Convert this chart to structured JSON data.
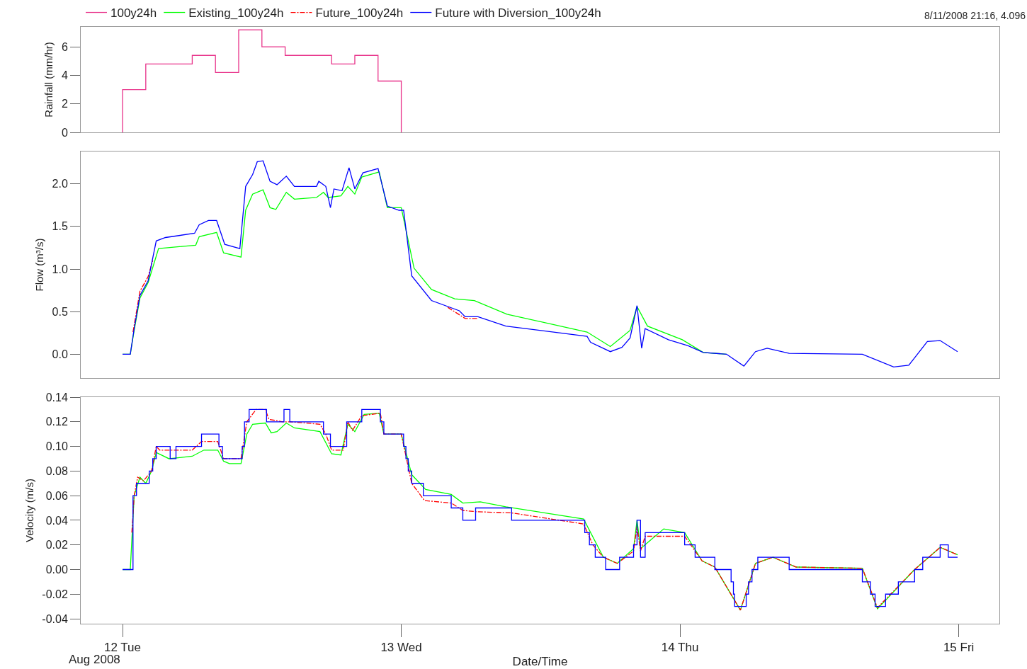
{
  "chart_data": [
    {
      "type": "step",
      "ylabel": "Rainfall (mm/hr)",
      "legend": "top",
      "tick_labels": "y",
      "annotations": [
        "8/11/2008 21:16, 4.096"
      ],
      "xlim": [
        "2008-08-11T20:24",
        "2008-08-15T03:30"
      ],
      "ylim": [
        0,
        7.4
      ],
      "yticks": [
        0,
        2,
        4,
        6
      ],
      "series": [
        {
          "name": "100y24h",
          "color": "#e8338a",
          "x": [
            "2008-08-12T00:00",
            "2008-08-12T00:00",
            "2008-08-12T02:00",
            "2008-08-12T06:00",
            "2008-08-12T08:00",
            "2008-08-12T10:00",
            "2008-08-12T12:00",
            "2008-08-12T14:00",
            "2008-08-12T18:00",
            "2008-08-12T20:00",
            "2008-08-12T22:00",
            "2008-08-13T00:00"
          ],
          "values": [
            0,
            3.0,
            4.8,
            5.4,
            4.2,
            7.2,
            6.0,
            5.4,
            4.8,
            5.4,
            3.6,
            0
          ]
        }
      ]
    },
    {
      "type": "line",
      "ylabel": "Flow (m³/s)",
      "tick_labels": "y",
      "legend": "top",
      "xlim": [
        "2008-08-11T20:24",
        "2008-08-15T03:30"
      ],
      "ylim": [
        -0.28,
        2.38
      ],
      "yticks": [
        {
          "value": 0,
          "label": "0.0"
        },
        {
          "value": 0.5,
          "label": "0.5"
        },
        {
          "value": 1,
          "label": "1.0"
        },
        {
          "value": 1.5,
          "label": "1.5"
        },
        {
          "value": 2,
          "label": "2.0"
        }
      ],
      "series": [
        {
          "name": "Existing_100y24h",
          "color": "#00ff00",
          "line_style": "solid",
          "x": [
            "2008-08-12T00:00",
            "2008-08-12T00:40",
            "2008-08-12T01:00",
            "2008-08-12T01:30",
            "2008-08-12T02:12",
            "2008-08-12T03:06",
            "2008-08-12T06:18",
            "2008-08-12T06:36",
            "2008-08-12T08:06",
            "2008-08-12T08:42",
            "2008-08-12T10:12",
            "2008-08-12T10:36",
            "2008-08-12T11:12",
            "2008-08-12T12:06",
            "2008-08-12T12:42",
            "2008-08-12T13:12",
            "2008-08-12T14:06",
            "2008-08-12T14:48",
            "2008-08-12T16:42",
            "2008-08-12T17:18",
            "2008-08-12T17:42",
            "2008-08-12T18:48",
            "2008-08-12T19:24",
            "2008-08-12T20:00",
            "2008-08-12T20:36",
            "2008-08-12T22:06",
            "2008-08-12T22:48",
            "2008-08-13T00:00",
            "2008-08-13T01:06",
            "2008-08-13T02:36",
            "2008-08-13T04:36",
            "2008-08-13T06:18",
            "2008-08-13T09:06",
            "2008-08-13T16:00",
            "2008-08-13T18:00",
            "2008-08-13T19:42",
            "2008-08-13T20:18",
            "2008-08-13T21:12",
            "2008-08-14T00:12",
            "2008-08-14T02:00",
            "2008-08-14T04:00"
          ],
          "values": [
            0.0,
            0.0,
            0.28,
            0.66,
            0.84,
            1.24,
            1.28,
            1.38,
            1.43,
            1.19,
            1.14,
            1.69,
            1.88,
            1.93,
            1.72,
            1.7,
            1.9,
            1.82,
            1.84,
            1.9,
            1.84,
            1.86,
            1.97,
            1.88,
            2.08,
            2.14,
            1.72,
            1.72,
            1.01,
            0.76,
            0.65,
            0.63,
            0.47,
            0.26,
            0.09,
            0.28,
            0.56,
            0.33,
            0.17,
            0.02,
            0.0
          ]
        },
        {
          "name": "Future_100y24h",
          "color": "#ff0000",
          "line_style": "dashed",
          "x": [
            "2008-08-12T00:54",
            "2008-08-12T01:30",
            "2008-08-12T02:12",
            "2008-08-12T02:36",
            "2008-08-13T03:00",
            "2008-08-13T04:00",
            "2008-08-13T05:30",
            "2008-08-13T06:36"
          ],
          "values": [
            0.26,
            0.74,
            0.91,
            1.1,
            null,
            0.55,
            0.42,
            0.42
          ]
        },
        {
          "name": "Future with Diversion_100y24h",
          "color": "#0000ff",
          "line_style": "solid",
          "x": [
            "2008-08-12T00:00",
            "2008-08-12T00:40",
            "2008-08-12T01:00",
            "2008-08-12T01:30",
            "2008-08-12T02:12",
            "2008-08-12T02:54",
            "2008-08-12T03:42",
            "2008-08-12T06:12",
            "2008-08-12T06:36",
            "2008-08-12T07:24",
            "2008-08-12T08:06",
            "2008-08-12T08:48",
            "2008-08-12T10:06",
            "2008-08-12T10:36",
            "2008-08-12T11:12",
            "2008-08-12T11:36",
            "2008-08-12T12:06",
            "2008-08-12T12:42",
            "2008-08-12T13:18",
            "2008-08-12T14:06",
            "2008-08-12T14:48",
            "2008-08-12T16:42",
            "2008-08-12T16:54",
            "2008-08-12T17:30",
            "2008-08-12T17:54",
            "2008-08-12T18:12",
            "2008-08-12T18:54",
            "2008-08-12T19:30",
            "2008-08-12T20:00",
            "2008-08-12T20:42",
            "2008-08-12T22:00",
            "2008-08-12T22:48",
            "2008-08-12T23:48",
            "2008-08-13T00:12",
            "2008-08-13T00:54",
            "2008-08-13T02:36",
            "2008-08-13T05:00",
            "2008-08-13T05:30",
            "2008-08-13T06:36",
            "2008-08-13T09:00",
            "2008-08-13T16:00",
            "2008-08-13T16:18",
            "2008-08-13T18:00",
            "2008-08-13T19:00",
            "2008-08-13T19:42",
            "2008-08-13T20:18",
            "2008-08-13T20:42",
            "2008-08-13T21:00",
            "2008-08-13T23:00",
            "2008-08-14T00:42",
            "2008-08-14T02:00",
            "2008-08-14T04:00",
            "2008-08-14T05:30",
            "2008-08-14T06:30",
            "2008-08-14T07:30",
            "2008-08-14T09:24",
            "2008-08-14T15:42",
            "2008-08-14T18:24",
            "2008-08-14T19:42",
            "2008-08-14T21:18",
            "2008-08-14T22:24",
            "2008-08-14T23:54"
          ],
          "values": [
            0.0,
            0.0,
            0.3,
            0.69,
            0.86,
            1.33,
            1.37,
            1.42,
            1.52,
            1.57,
            1.57,
            1.29,
            1.24,
            1.97,
            2.11,
            2.26,
            2.27,
            2.03,
            1.99,
            2.09,
            1.97,
            1.97,
            2.03,
            1.97,
            1.72,
            1.94,
            1.92,
            2.19,
            1.94,
            2.13,
            2.18,
            1.74,
            1.69,
            1.69,
            0.92,
            0.63,
            0.51,
            0.44,
            0.44,
            0.33,
            0.21,
            0.14,
            0.03,
            0.08,
            0.19,
            0.57,
            0.07,
            0.3,
            0.17,
            0.1,
            0.02,
            0.0,
            -0.14,
            0.03,
            0.07,
            0.01,
            0.0,
            -0.15,
            -0.13,
            0.15,
            0.16,
            0.03
          ]
        }
      ]
    },
    {
      "type": "line",
      "ylabel": "Velocity (m/s)",
      "xlabel": "Date/Time",
      "annotations": [
        "Aug 2008"
      ],
      "xlim": [
        "2008-08-11T20:24",
        "2008-08-15T03:30"
      ],
      "xticks": [
        {
          "value": "2008-08-12",
          "label": "12 Tue"
        },
        {
          "value": "2008-08-13",
          "label": "13 Wed"
        },
        {
          "value": "2008-08-14",
          "label": "14 Thu"
        },
        {
          "value": "2008-08-15",
          "label": "15 Fri"
        }
      ],
      "ylim": [
        -0.044,
        0.14
      ],
      "yticks": [
        {
          "value": -0.04,
          "label": "-0.04"
        },
        {
          "value": -0.02,
          "label": "-0.02"
        },
        {
          "value": 0,
          "label": "0.00"
        },
        {
          "value": 0.02,
          "label": "0.02"
        },
        {
          "value": 0.04,
          "label": "0.04"
        },
        {
          "value": 0.06,
          "label": "0.06"
        },
        {
          "value": 0.08,
          "label": "0.08"
        },
        {
          "value": 0.1,
          "label": "0.10"
        },
        {
          "value": 0.12,
          "label": "0.12"
        },
        {
          "value": 0.14,
          "label": "0.14"
        }
      ],
      "series": [
        {
          "name": "Existing_100y24h",
          "color": "#00ff00",
          "line_style": "solid",
          "x": [
            "2008-08-12T00:00",
            "2008-08-12T00:40",
            "2008-08-12T01:00",
            "2008-08-12T01:30",
            "2008-08-12T02:00",
            "2008-08-12T02:30",
            "2008-08-12T02:54",
            "2008-08-12T04:00",
            "2008-08-12T06:00",
            "2008-08-12T07:00",
            "2008-08-12T08:12",
            "2008-08-12T08:42",
            "2008-08-12T09:12",
            "2008-08-12T10:12",
            "2008-08-12T10:42",
            "2008-08-12T11:12",
            "2008-08-12T12:18",
            "2008-08-12T12:48",
            "2008-08-12T13:18",
            "2008-08-12T14:06",
            "2008-08-12T14:48",
            "2008-08-12T17:00",
            "2008-08-12T18:00",
            "2008-08-12T18:48",
            "2008-08-12T19:24",
            "2008-08-12T20:00",
            "2008-08-12T20:48",
            "2008-08-12T22:06",
            "2008-08-12T22:30",
            "2008-08-13T00:00",
            "2008-08-13T00:54",
            "2008-08-13T02:06",
            "2008-08-13T04:18",
            "2008-08-13T05:18",
            "2008-08-13T06:48",
            "2008-08-13T09:00",
            "2008-08-13T15:42",
            "2008-08-13T17:24",
            "2008-08-13T18:36",
            "2008-08-13T20:00",
            "2008-08-13T20:18",
            "2008-08-13T20:36",
            "2008-08-13T22:36",
            "2008-08-14T00:24",
            "2008-08-14T01:54",
            "2008-08-14T03:00",
            "2008-08-14T05:12",
            "2008-08-14T06:30",
            "2008-08-14T08:00",
            "2008-08-14T10:00",
            "2008-08-14T15:42",
            "2008-08-14T17:00",
            "2008-08-14T20:12",
            "2008-08-14T22:24",
            "2008-08-14T23:54"
          ],
          "values": [
            0,
            0,
            0.06,
            0.075,
            0.07,
            0.08,
            0.095,
            0.09,
            0.092,
            0.097,
            0.097,
            0.088,
            0.086,
            0.086,
            0.11,
            0.118,
            0.119,
            0.111,
            0.112,
            0.119,
            0.115,
            0.112,
            0.094,
            0.093,
            0.118,
            0.112,
            0.126,
            0.127,
            0.11,
            0.11,
            0.077,
            0.065,
            0.061,
            0.054,
            0.055,
            0.051,
            0.041,
            0.01,
            0.005,
            0.017,
            0.04,
            0.017,
            0.033,
            0.03,
            0.007,
            0.002,
            -0.033,
            0.005,
            0.01,
            0.002,
            0.001,
            -0.032,
            0.0,
            0.018,
            0.012
          ]
        },
        {
          "name": "Future_100y24h",
          "color": "#ff0000",
          "line_style": "dashed",
          "x": [
            "2008-08-12T00:48",
            "2008-08-12T01:00",
            "2008-08-12T01:18",
            "2008-08-12T01:48",
            "2008-08-12T02:30",
            "2008-08-12T02:54",
            "2008-08-12T03:12",
            "2008-08-12T06:00",
            "2008-08-12T06:48",
            "2008-08-12T08:12",
            "2008-08-12T08:42",
            "2008-08-12T10:12",
            "2008-08-12T10:42",
            "2008-08-12T11:30",
            "2008-08-12T12:18",
            "2008-08-12T12:36",
            "2008-08-12T13:48",
            "2008-08-12T14:30",
            "2008-08-12T17:00",
            "2008-08-12T17:30",
            "2008-08-12T18:00",
            "2008-08-12T19:00",
            "2008-08-12T19:24",
            "2008-08-12T19:48",
            "2008-08-12T20:36",
            "2008-08-12T22:12",
            "2008-08-12T22:30",
            "2008-08-13T00:00",
            "2008-08-13T00:54",
            "2008-08-13T02:00",
            "2008-08-13T04:18",
            "2008-08-13T05:18",
            "2008-08-13T06:24",
            "2008-08-13T09:30",
            "2008-08-13T15:42",
            "2008-08-13T16:30",
            "2008-08-13T17:24",
            "2008-08-13T18:36",
            "2008-08-13T20:00",
            "2008-08-13T20:18",
            "2008-08-13T20:36",
            "2008-08-13T21:00",
            "2008-08-14T00:24",
            "2008-08-14T01:54",
            "2008-08-14T03:00",
            "2008-08-14T05:12",
            "2008-08-14T06:30",
            "2008-08-14T08:00",
            "2008-08-14T10:00",
            "2008-08-14T15:42",
            "2008-08-14T17:00",
            "2008-08-14T20:12",
            "2008-08-14T22:24",
            "2008-08-14T23:54"
          ],
          "values": [
            0.03,
            0.06,
            0.075,
            0.072,
            0.08,
            0.1,
            0.097,
            0.097,
            0.104,
            0.104,
            0.09,
            0.09,
            0.12,
            0.13,
            0.13,
            0.122,
            0.12,
            0.12,
            0.118,
            0.11,
            0.097,
            0.097,
            0.12,
            0.113,
            0.125,
            0.127,
            0.11,
            0.11,
            0.07,
            0.056,
            0.054,
            0.048,
            0.047,
            0.046,
            0.037,
            0.02,
            0.01,
            0.005,
            0.015,
            0.035,
            0.015,
            0.027,
            0.027,
            0.007,
            0.002,
            -0.033,
            0.005,
            0.01,
            0.002,
            0.001,
            -0.031,
            0.0,
            0.018,
            0.012
          ]
        },
        {
          "name": "Future with Diversion_100y24h",
          "color": "#0000ff",
          "line_style": "solid",
          "type": "step",
          "x": [
            "2008-08-12T00:00",
            "2008-08-12T00:54",
            "2008-08-12T01:12",
            "2008-08-12T02:18",
            "2008-08-12T02:36",
            "2008-08-12T02:54",
            "2008-08-12T04:06",
            "2008-08-12T04:36",
            "2008-08-12T06:48",
            "2008-08-12T08:18",
            "2008-08-12T08:36",
            "2008-08-12T10:18",
            "2008-08-12T10:30",
            "2008-08-12T10:54",
            "2008-08-12T12:24",
            "2008-08-12T13:54",
            "2008-08-12T14:24",
            "2008-08-12T17:18",
            "2008-08-12T17:54",
            "2008-08-12T19:18",
            "2008-08-12T20:36",
            "2008-08-12T22:12",
            "2008-08-12T22:30",
            "2008-08-13T00:12",
            "2008-08-13T00:24",
            "2008-08-13T00:36",
            "2008-08-13T00:54",
            "2008-08-13T01:54",
            "2008-08-13T04:18",
            "2008-08-13T05:18",
            "2008-08-13T06:24",
            "2008-08-13T09:30",
            "2008-08-13T15:48",
            "2008-08-13T16:12",
            "2008-08-13T16:42",
            "2008-08-13T17:36",
            "2008-08-13T18:48",
            "2008-08-13T20:00",
            "2008-08-13T20:18",
            "2008-08-13T20:36",
            "2008-08-13T21:00",
            "2008-08-14T00:24",
            "2008-08-14T01:18",
            "2008-08-14T03:00",
            "2008-08-14T04:24",
            "2008-08-14T04:36",
            "2008-08-14T04:42",
            "2008-08-14T05:42",
            "2008-08-14T05:54",
            "2008-08-14T06:12",
            "2008-08-14T06:42",
            "2008-08-14T09:24",
            "2008-08-14T15:42",
            "2008-08-14T16:24",
            "2008-08-14T16:48",
            "2008-08-14T17:42",
            "2008-08-14T18:48",
            "2008-08-14T20:12",
            "2008-08-14T20:54",
            "2008-08-14T22:24",
            "2008-08-14T23:06",
            "2008-08-14T23:54"
          ],
          "values": [
            0.0,
            0.06,
            0.07,
            0.08,
            0.09,
            0.1,
            0.09,
            0.1,
            0.11,
            0.1,
            0.09,
            0.1,
            0.12,
            0.13,
            0.12,
            0.13,
            0.12,
            0.11,
            0.1,
            0.12,
            0.13,
            0.12,
            0.11,
            0.1,
            0.09,
            0.08,
            0.07,
            0.06,
            0.05,
            0.04,
            0.05,
            0.04,
            0.03,
            0.02,
            0.01,
            0.0,
            0.01,
            0.02,
            0.04,
            0.01,
            0.03,
            0.02,
            0.01,
            0.0,
            -0.01,
            -0.02,
            -0.03,
            -0.02,
            -0.01,
            0.0,
            0.01,
            0.0,
            -0.01,
            -0.02,
            -0.03,
            -0.02,
            -0.01,
            0.0,
            0.01,
            0.02,
            0.01,
            0.01
          ]
        }
      ]
    }
  ]
}
